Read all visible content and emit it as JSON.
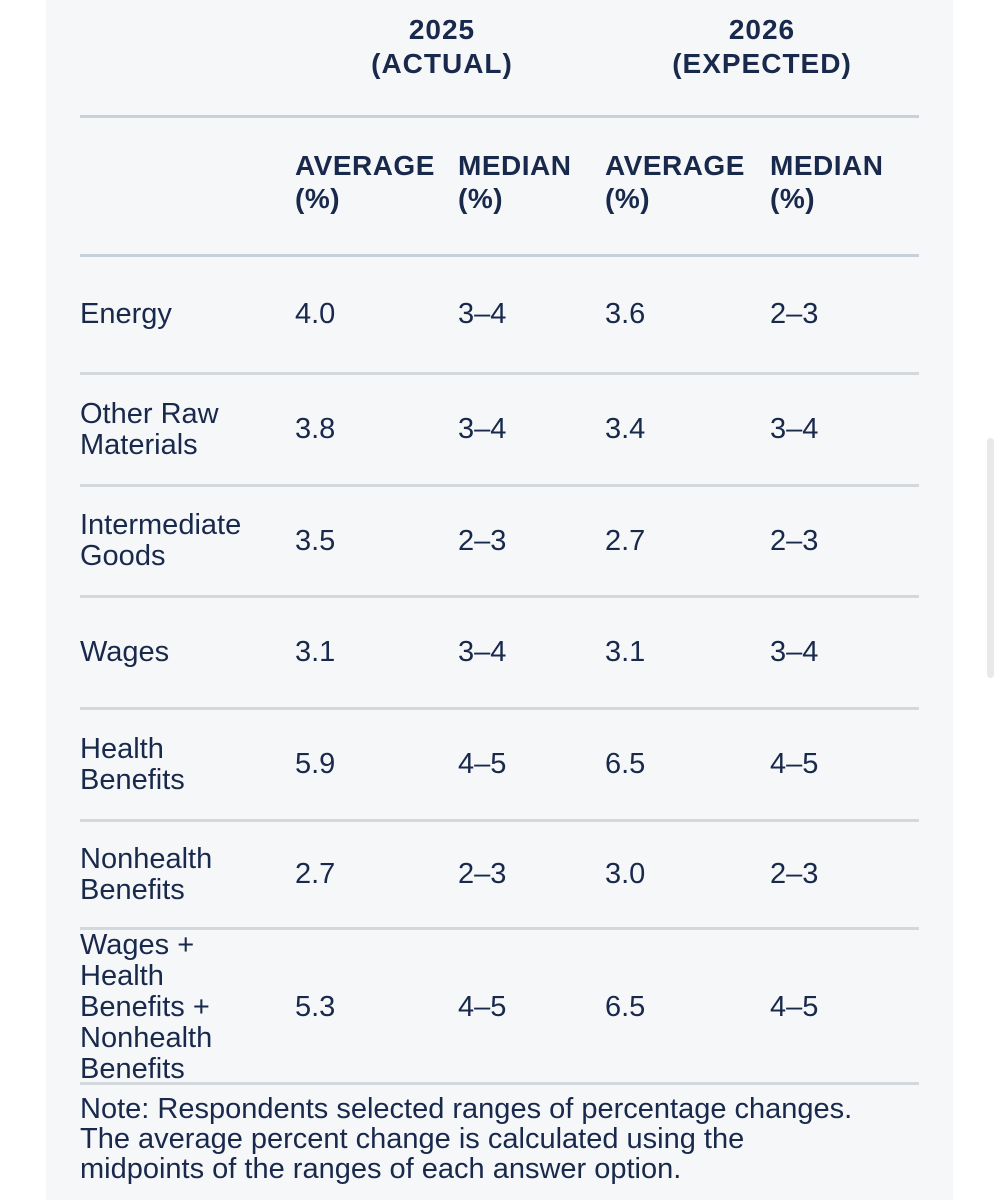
{
  "page": {
    "background": "#ffffff",
    "panel_background": "#f5f7f9",
    "text_color": "#19294c",
    "header_divider_color": "#c8d1da",
    "row_divider_color": "#d3d8dc",
    "scrollbar_thumb_color": "#e9e9e9"
  },
  "table": {
    "col_groups": [
      "2025\n(ACTUAL)",
      "2026\n(EXPECTED)"
    ],
    "columns": [
      "AVERAGE\n(%)",
      "MEDIAN\n(%)",
      "AVERAGE\n(%)",
      "MEDIAN\n(%)"
    ],
    "rows": [
      {
        "label": "Energy",
        "values": [
          "4.0",
          "3–4",
          "3.6",
          "2–3"
        ]
      },
      {
        "label": "Other Raw\nMaterials",
        "values": [
          "3.8",
          "3–4",
          "3.4",
          "3–4"
        ]
      },
      {
        "label": "Intermediate\nGoods",
        "values": [
          "3.5",
          "2–3",
          "2.7",
          "2–3"
        ]
      },
      {
        "label": "Wages",
        "values": [
          "3.1",
          "3–4",
          "3.1",
          "3–4"
        ]
      },
      {
        "label": "Health\nBenefits",
        "values": [
          "5.9",
          "4–5",
          "6.5",
          "4–5"
        ]
      },
      {
        "label": "Nonhealth\nBenefits",
        "values": [
          "2.7",
          "2–3",
          "3.0",
          "2–3"
        ]
      },
      {
        "label": "Wages +\nHealth\nBenefits +\nNonhealth\nBenefits",
        "values": [
          "5.3",
          "4–5",
          "6.5",
          "4–5"
        ]
      }
    ],
    "note": "Note: Respondents selected ranges of percentage changes.\nThe average percent change is calculated using the\nmidpoints of the ranges of each answer option."
  },
  "chart_data": {
    "type": "table",
    "title": "",
    "column_groups": [
      {
        "label": "2025 (Actual)",
        "columns": [
          "Average (%)",
          "Median (%)"
        ]
      },
      {
        "label": "2026 (Expected)",
        "columns": [
          "Average (%)",
          "Median (%)"
        ]
      }
    ],
    "row_labels": [
      "Energy",
      "Other Raw Materials",
      "Intermediate Goods",
      "Wages",
      "Health Benefits",
      "Nonhealth Benefits",
      "Wages + Health Benefits + Nonhealth Benefits"
    ],
    "series": [
      {
        "name": "2025 Actual Average (%)",
        "values": [
          4.0,
          3.8,
          3.5,
          3.1,
          5.9,
          2.7,
          5.3
        ]
      },
      {
        "name": "2025 Actual Median (%)",
        "values": [
          "3–4",
          "3–4",
          "2–3",
          "3–4",
          "4–5",
          "2–3",
          "4–5"
        ]
      },
      {
        "name": "2026 Expected Average (%)",
        "values": [
          3.6,
          3.4,
          2.7,
          3.1,
          6.5,
          3.0,
          6.5
        ]
      },
      {
        "name": "2026 Expected Median (%)",
        "values": [
          "2–3",
          "3–4",
          "2–3",
          "3–4",
          "4–5",
          "2–3",
          "4–5"
        ]
      }
    ],
    "note": "Note: Respondents selected ranges of percentage changes. The average percent change is calculated using the midpoints of the ranges of each answer option."
  }
}
